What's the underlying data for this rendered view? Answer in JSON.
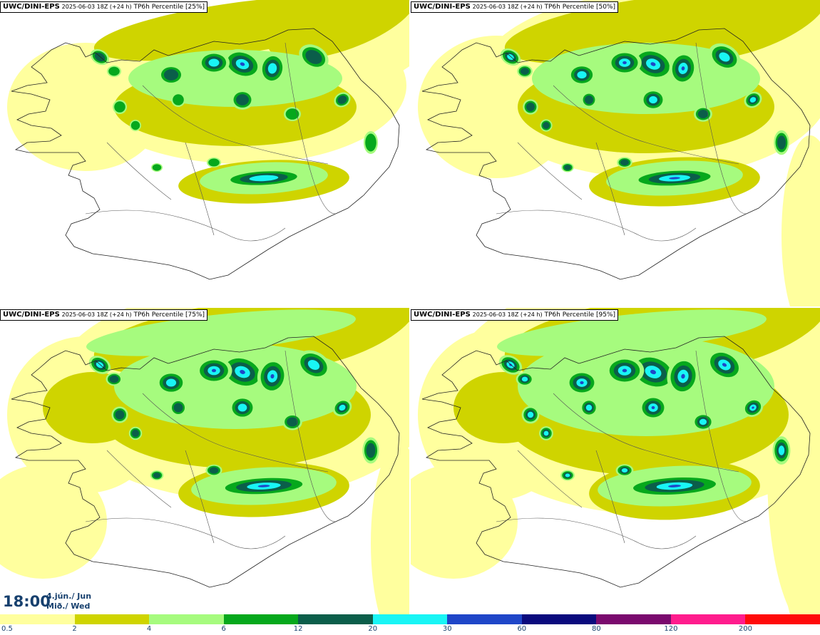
{
  "panels": [
    {
      "model": "UWC/DINI-EPS",
      "run": "2025-06-03 18Z (+24 h)",
      "field": "TP6h Percentile",
      "percentile": "[25%]",
      "intensity": 0
    },
    {
      "model": "UWC/DINI-EPS",
      "run": "2025-06-03 18Z (+24 h)",
      "field": "TP6h Percentile",
      "percentile": "[50%]",
      "intensity": 1
    },
    {
      "model": "UWC/DINI-EPS",
      "run": "2025-06-03 18Z (+24 h)",
      "field": "TP6h Percentile",
      "percentile": "[75%]",
      "intensity": 2
    },
    {
      "model": "UWC/DINI-EPS",
      "run": "2025-06-03 18Z (+24 h)",
      "field": "TP6h Percentile",
      "percentile": "[95%]",
      "intensity": 3
    }
  ],
  "valid_time": {
    "time": "18:00",
    "date_line1": "4.jún./ Jun",
    "date_line2": "Mið./ Wed"
  },
  "legend": {
    "labels": [
      "0.5",
      "2",
      "4",
      "6",
      "12",
      "20",
      "30",
      "60",
      "80",
      "120",
      "200"
    ],
    "colors": [
      "#ffff9e",
      "#cfd400",
      "#a6fb7e",
      "#06a81c",
      "#0b5e4a",
      "#19f5f5",
      "#1f46c8",
      "#0a0a7d",
      "#7a0a6e",
      "#ff1c8d",
      "#ff0a0a"
    ]
  }
}
